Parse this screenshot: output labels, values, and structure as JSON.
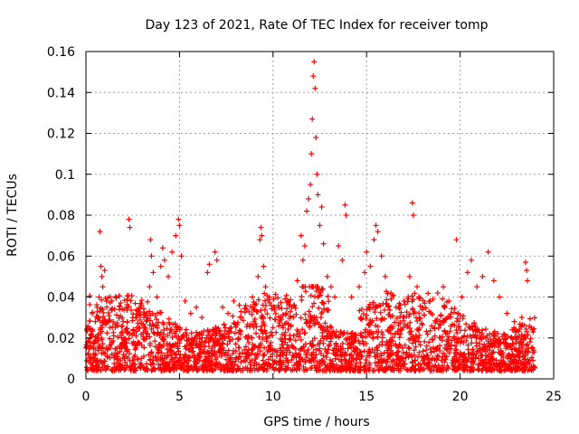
{
  "chart_data": {
    "type": "scatter",
    "title": "Day 123 of 2021, Rate Of TEC Index for receiver tomp",
    "xlabel": "GPS time / hours",
    "ylabel": "ROTI / TECUs",
    "xlim": [
      0,
      25
    ],
    "ylim": [
      0,
      0.16
    ],
    "x_ticks": [
      0,
      5,
      10,
      15,
      20,
      25
    ],
    "x_tick_labels": [
      "0",
      "5",
      "10",
      "15",
      "20",
      "25"
    ],
    "y_ticks": [
      0,
      0.02,
      0.04,
      0.06,
      0.08,
      0.1,
      0.12,
      0.14,
      0.16
    ],
    "y_tick_labels": [
      "0",
      "0.02",
      "0.04",
      "0.06",
      "0.08",
      "0.1",
      "0.12",
      "0.14",
      "0.16"
    ],
    "grid": true,
    "marker": "plus",
    "color": "#ff0000",
    "series": [
      {
        "name": "ROTI",
        "points": [
          [
            0.1,
            0.012
          ],
          [
            0.2,
            0.018
          ],
          [
            0.3,
            0.022
          ],
          [
            0.4,
            0.015
          ],
          [
            0.5,
            0.028
          ],
          [
            0.6,
            0.035
          ],
          [
            0.7,
            0.04
          ],
          [
            0.75,
            0.072
          ],
          [
            0.8,
            0.055
          ],
          [
            0.85,
            0.05
          ],
          [
            0.9,
            0.045
          ],
          [
            1.0,
            0.053
          ],
          [
            1.1,
            0.038
          ],
          [
            1.3,
            0.015
          ],
          [
            1.6,
            0.012
          ],
          [
            1.9,
            0.02
          ],
          [
            2.2,
            0.035
          ],
          [
            2.3,
            0.078
          ],
          [
            2.35,
            0.074
          ],
          [
            2.5,
            0.03
          ],
          [
            2.8,
            0.025
          ],
          [
            3.1,
            0.03
          ],
          [
            3.4,
            0.045
          ],
          [
            3.45,
            0.068
          ],
          [
            3.5,
            0.06
          ],
          [
            3.6,
            0.052
          ],
          [
            3.8,
            0.04
          ],
          [
            4.0,
            0.055
          ],
          [
            4.1,
            0.064
          ],
          [
            4.2,
            0.058
          ],
          [
            4.4,
            0.05
          ],
          [
            4.6,
            0.062
          ],
          [
            4.8,
            0.07
          ],
          [
            4.95,
            0.078
          ],
          [
            5.0,
            0.075
          ],
          [
            5.1,
            0.06
          ],
          [
            5.3,
            0.038
          ],
          [
            5.6,
            0.032
          ],
          [
            5.9,
            0.035
          ],
          [
            6.2,
            0.03
          ],
          [
            6.5,
            0.052
          ],
          [
            6.6,
            0.056
          ],
          [
            6.9,
            0.062
          ],
          [
            7.0,
            0.058
          ],
          [
            7.3,
            0.035
          ],
          [
            7.6,
            0.032
          ],
          [
            7.9,
            0.038
          ],
          [
            8.2,
            0.036
          ],
          [
            8.6,
            0.034
          ],
          [
            8.9,
            0.04
          ],
          [
            9.2,
            0.05
          ],
          [
            9.3,
            0.068
          ],
          [
            9.35,
            0.074
          ],
          [
            9.4,
            0.07
          ],
          [
            9.5,
            0.055
          ],
          [
            9.6,
            0.045
          ],
          [
            9.8,
            0.04
          ],
          [
            10.1,
            0.035
          ],
          [
            10.4,
            0.03
          ],
          [
            10.7,
            0.032
          ],
          [
            11.0,
            0.035
          ],
          [
            11.3,
            0.048
          ],
          [
            11.5,
            0.07
          ],
          [
            11.6,
            0.058
          ],
          [
            11.7,
            0.065
          ],
          [
            11.8,
            0.082
          ],
          [
            11.9,
            0.088
          ],
          [
            12.0,
            0.095
          ],
          [
            12.05,
            0.11
          ],
          [
            12.1,
            0.127
          ],
          [
            12.15,
            0.148
          ],
          [
            12.2,
            0.155
          ],
          [
            12.25,
            0.142
          ],
          [
            12.3,
            0.118
          ],
          [
            12.35,
            0.1
          ],
          [
            12.4,
            0.09
          ],
          [
            12.5,
            0.075
          ],
          [
            12.6,
            0.084
          ],
          [
            12.7,
            0.066
          ],
          [
            12.9,
            0.05
          ],
          [
            13.1,
            0.045
          ],
          [
            13.3,
            0.04
          ],
          [
            13.5,
            0.065
          ],
          [
            13.7,
            0.058
          ],
          [
            13.85,
            0.085
          ],
          [
            13.9,
            0.08
          ],
          [
            14.2,
            0.04
          ],
          [
            14.6,
            0.045
          ],
          [
            14.9,
            0.052
          ],
          [
            15.0,
            0.062
          ],
          [
            15.2,
            0.055
          ],
          [
            15.4,
            0.068
          ],
          [
            15.5,
            0.075
          ],
          [
            15.6,
            0.072
          ],
          [
            15.8,
            0.06
          ],
          [
            16.0,
            0.05
          ],
          [
            16.3,
            0.042
          ],
          [
            16.7,
            0.035
          ],
          [
            17.0,
            0.038
          ],
          [
            17.3,
            0.05
          ],
          [
            17.45,
            0.086
          ],
          [
            17.5,
            0.08
          ],
          [
            17.7,
            0.045
          ],
          [
            18.0,
            0.035
          ],
          [
            18.4,
            0.038
          ],
          [
            18.8,
            0.042
          ],
          [
            19.1,
            0.045
          ],
          [
            19.4,
            0.038
          ],
          [
            19.8,
            0.068
          ],
          [
            20.1,
            0.04
          ],
          [
            20.4,
            0.052
          ],
          [
            20.6,
            0.058
          ],
          [
            20.9,
            0.045
          ],
          [
            21.2,
            0.05
          ],
          [
            21.5,
            0.062
          ],
          [
            21.8,
            0.048
          ],
          [
            22.1,
            0.04
          ],
          [
            22.5,
            0.032
          ],
          [
            22.9,
            0.028
          ],
          [
            23.3,
            0.03
          ],
          [
            23.5,
            0.057
          ],
          [
            23.55,
            0.053
          ],
          [
            23.6,
            0.048
          ],
          [
            23.8,
            0.025
          ]
        ]
      }
    ]
  }
}
